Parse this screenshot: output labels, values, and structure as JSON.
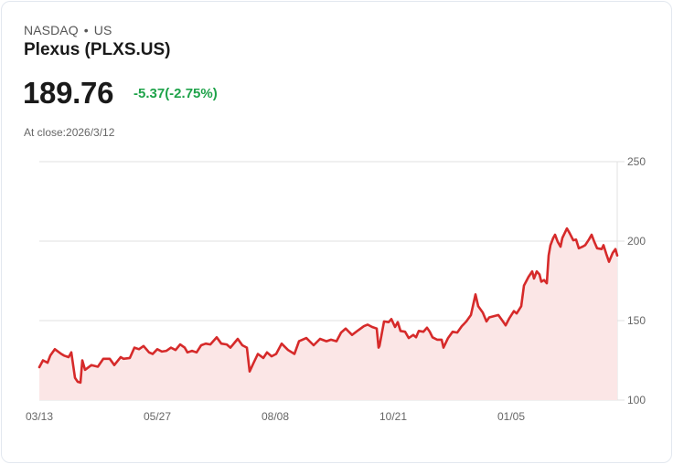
{
  "header": {
    "exchange": "NASDAQ",
    "separator": "•",
    "region": "US",
    "title": "Plexus (PLXS.US)",
    "price": "189.76",
    "change": "-5.37(-2.75%)",
    "change_color": "#1fa34a",
    "close_label": "At close:2026/3/12"
  },
  "colors": {
    "line": "#d62a2a",
    "fill": "#fbe6e6",
    "grid": "#e2e2e2"
  },
  "chart_data": {
    "type": "area",
    "title": "Plexus (PLXS.US)",
    "xlabel": "",
    "ylabel": "",
    "ylim": [
      100,
      250
    ],
    "yticks": [
      100,
      150,
      200,
      250
    ],
    "xtick_labels": [
      "03/13",
      "05/27",
      "08/08",
      "10/21",
      "01/05"
    ],
    "grid": true,
    "y_axis_position": "right",
    "points_note": "x = pixel offset along 0-632 plot width (03/13 at 0, last close at 632); y = price",
    "points": [
      [
        0,
        120.7
      ],
      [
        4,
        125
      ],
      [
        9,
        123.5
      ],
      [
        12,
        128
      ],
      [
        17,
        132
      ],
      [
        24,
        129
      ],
      [
        27,
        128
      ],
      [
        32,
        127
      ],
      [
        35,
        130
      ],
      [
        36,
        126
      ],
      [
        39,
        114
      ],
      [
        42,
        111.5
      ],
      [
        45,
        111
      ],
      [
        47,
        125
      ],
      [
        50,
        119
      ],
      [
        57,
        122
      ],
      [
        64,
        121
      ],
      [
        70,
        126
      ],
      [
        77,
        126
      ],
      [
        82,
        122
      ],
      [
        89,
        127
      ],
      [
        92,
        126
      ],
      [
        99,
        126.5
      ],
      [
        104,
        133
      ],
      [
        109,
        132
      ],
      [
        114,
        134
      ],
      [
        120,
        130
      ],
      [
        124,
        129
      ],
      [
        129,
        132
      ],
      [
        134,
        130.5
      ],
      [
        139,
        131
      ],
      [
        144,
        133
      ],
      [
        149,
        131.5
      ],
      [
        154,
        135
      ],
      [
        159,
        133
      ],
      [
        162,
        130
      ],
      [
        167,
        131
      ],
      [
        172,
        130
      ],
      [
        177,
        134.5
      ],
      [
        182,
        135.5
      ],
      [
        187,
        135
      ],
      [
        194,
        139.5
      ],
      [
        199,
        135.5
      ],
      [
        205,
        135
      ],
      [
        209,
        133
      ],
      [
        217,
        138.5
      ],
      [
        222,
        134.5
      ],
      [
        227,
        133
      ],
      [
        230,
        118
      ],
      [
        234,
        123
      ],
      [
        239,
        129
      ],
      [
        245,
        126.5
      ],
      [
        249,
        130
      ],
      [
        254,
        127.5
      ],
      [
        259,
        129
      ],
      [
        265,
        135.5
      ],
      [
        272,
        131.5
      ],
      [
        279,
        129
      ],
      [
        284,
        137
      ],
      [
        292,
        139
      ],
      [
        300,
        134.5
      ],
      [
        307,
        138.5
      ],
      [
        314,
        137
      ],
      [
        319,
        138
      ],
      [
        325,
        137
      ],
      [
        330,
        142.5
      ],
      [
        335,
        145
      ],
      [
        342,
        141
      ],
      [
        349,
        144
      ],
      [
        355,
        146.5
      ],
      [
        359,
        147.5
      ],
      [
        364,
        146
      ],
      [
        369,
        145
      ],
      [
        371,
        133
      ],
      [
        372,
        134
      ],
      [
        377,
        149.5
      ],
      [
        382,
        149
      ],
      [
        385,
        151
      ],
      [
        389,
        146
      ],
      [
        392,
        149
      ],
      [
        395,
        143.5
      ],
      [
        400,
        143
      ],
      [
        404,
        139
      ],
      [
        409,
        141
      ],
      [
        412,
        139.5
      ],
      [
        415,
        143.5
      ],
      [
        420,
        143
      ],
      [
        424,
        145.5
      ],
      [
        427,
        143
      ],
      [
        430,
        139.5
      ],
      [
        435,
        138
      ],
      [
        440,
        138
      ],
      [
        442,
        133
      ],
      [
        447,
        139
      ],
      [
        452,
        143
      ],
      [
        457,
        142.5
      ],
      [
        462,
        146.5
      ],
      [
        467,
        149.5
      ],
      [
        472,
        153.5
      ],
      [
        477,
        166.5
      ],
      [
        480,
        159
      ],
      [
        485,
        155
      ],
      [
        489,
        149.5
      ],
      [
        492,
        152
      ],
      [
        502,
        153.5
      ],
      [
        507,
        149.5
      ],
      [
        510,
        147
      ],
      [
        514,
        151.5
      ],
      [
        519,
        156
      ],
      [
        522,
        154.5
      ],
      [
        527,
        159
      ],
      [
        530,
        172
      ],
      [
        535,
        177.5
      ],
      [
        539,
        181
      ],
      [
        541,
        176.5
      ],
      [
        544,
        181
      ],
      [
        547,
        179
      ],
      [
        549,
        174.5
      ],
      [
        552,
        175.5
      ],
      [
        555,
        173.5
      ],
      [
        557,
        191
      ],
      [
        559,
        197.5
      ],
      [
        562,
        202
      ],
      [
        564,
        204
      ],
      [
        567,
        199.5
      ],
      [
        570,
        196.5
      ],
      [
        572,
        202
      ],
      [
        577,
        208
      ],
      [
        580,
        205
      ],
      [
        584,
        200.5
      ],
      [
        587,
        201
      ],
      [
        590,
        195.5
      ],
      [
        594,
        196.5
      ],
      [
        597,
        197.5
      ],
      [
        601,
        201
      ],
      [
        604,
        204
      ],
      [
        607,
        199.5
      ],
      [
        610,
        195.5
      ],
      [
        615,
        195
      ],
      [
        617,
        197.5
      ],
      [
        620,
        192
      ],
      [
        623,
        187
      ],
      [
        627,
        192.5
      ],
      [
        630,
        195
      ],
      [
        632,
        191
      ]
    ]
  }
}
